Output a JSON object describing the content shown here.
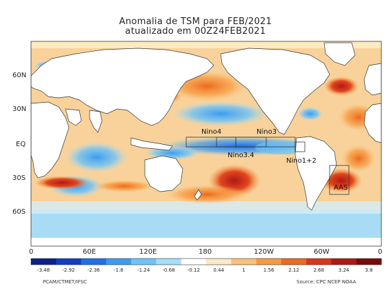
{
  "title": {
    "line1": "Anomalia de TSM para FEB/2021",
    "line2": "atualizado em 00Z24FEB2021"
  },
  "map": {
    "lat_labels": [
      "60N",
      "30N",
      "EQ",
      "30S",
      "60S"
    ],
    "lon_labels": [
      "0",
      "60E",
      "120E",
      "180",
      "120W",
      "60W",
      "0"
    ],
    "regions": [
      "Nino4",
      "Nino3",
      "Nino3.4",
      "Nino1+2",
      "AAS"
    ]
  },
  "colorbar": {
    "labels": [
      "-3.48",
      "-2.92",
      "-2.36",
      "-1.8",
      "-1.24",
      "-0.68",
      "-0.12",
      "0.44",
      "1",
      "1.56",
      "2.12",
      "2.68",
      "3.24",
      "3.8"
    ],
    "colors": [
      "#08208a",
      "#0f3fc4",
      "#1f6fe8",
      "#3a9cf2",
      "#6fc3f7",
      "#a5defa",
      "#ffffff",
      "#fde9c2",
      "#fbc07a",
      "#f79a3e",
      "#ec6a1f",
      "#d8361a",
      "#b01818",
      "#7a0a0a"
    ]
  },
  "footer": {
    "left": "PCAM/CTMET/IFSC",
    "right": "Source: CPC NCEP NOAA"
  },
  "colors": {
    "land": "#ffffff",
    "coast": "#333333",
    "ocean_base": "#f6c98a"
  }
}
